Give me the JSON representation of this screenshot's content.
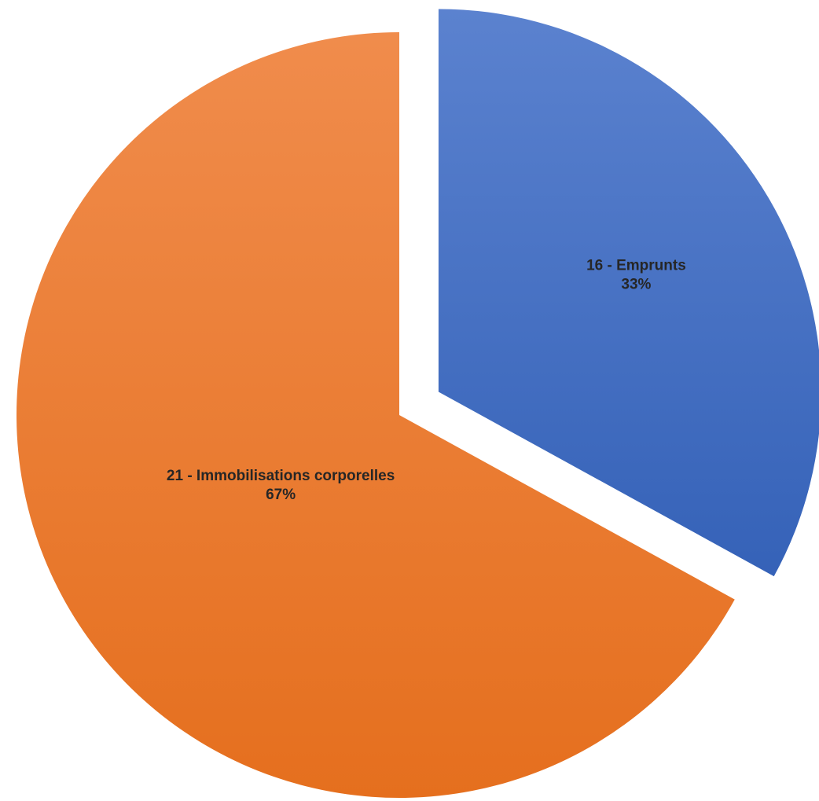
{
  "chart_data": {
    "type": "pie",
    "title": "",
    "slices": [
      {
        "label": "16 - Emprunts",
        "value": 33,
        "percent_label": "33%",
        "color": "#4472c4",
        "color_light": "#5b82cf",
        "color_dark": "#3562b8",
        "exploded": true
      },
      {
        "label": "21 - Immobilisations corporelles",
        "value": 67,
        "percent_label": "67%",
        "color": "#ed7d31",
        "color_light": "#f08c4c",
        "color_dark": "#e56f1e",
        "exploded": false
      }
    ],
    "start_angle_deg": 0,
    "direction": "clockwise",
    "legend": "none",
    "data_labels": "inside"
  }
}
